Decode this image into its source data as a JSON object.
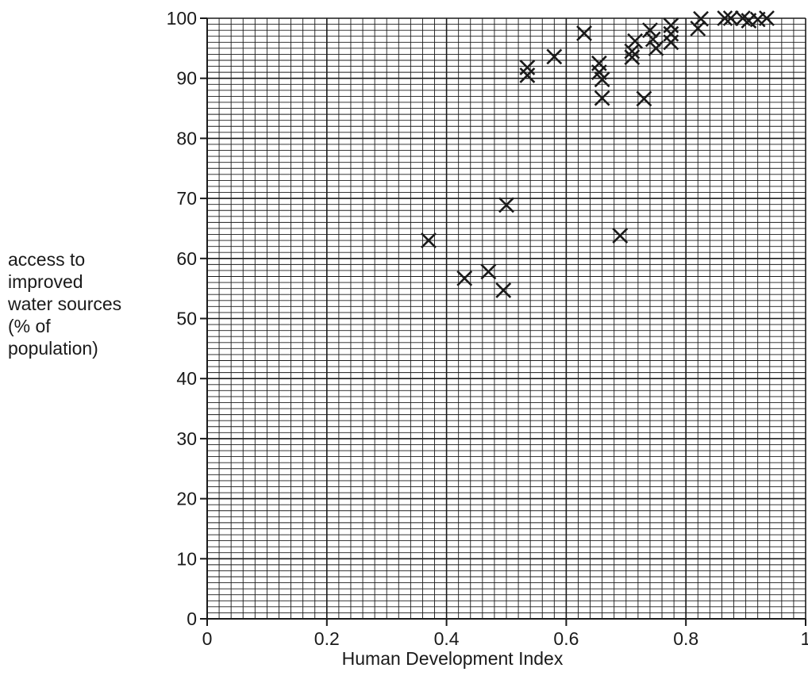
{
  "chart_data": {
    "type": "scatter",
    "xlabel": "Human Development Index",
    "ylabel_lines": [
      "access to",
      "improved",
      "water sources",
      "(% of",
      "population)"
    ],
    "xlim": [
      0,
      1
    ],
    "ylim": [
      0,
      100
    ],
    "x_ticks": [
      "0",
      "0.2",
      "0.4",
      "0.6",
      "0.8",
      "1"
    ],
    "y_ticks": [
      "0",
      "10",
      "20",
      "30",
      "40",
      "50",
      "60",
      "70",
      "80",
      "90",
      "100"
    ],
    "grid": true,
    "minor_grid": true,
    "marker": "x",
    "series": [
      {
        "points": [
          [
            0.37,
            63
          ],
          [
            0.43,
            56.7
          ],
          [
            0.47,
            57.8
          ],
          [
            0.495,
            54.7
          ],
          [
            0.5,
            68.9
          ],
          [
            0.535,
            90.5
          ],
          [
            0.535,
            91.8
          ],
          [
            0.58,
            93.6
          ],
          [
            0.63,
            97.5
          ],
          [
            0.655,
            91
          ],
          [
            0.655,
            92.5
          ],
          [
            0.66,
            86.7
          ],
          [
            0.66,
            89.8
          ],
          [
            0.69,
            63.8
          ],
          [
            0.71,
            93.5
          ],
          [
            0.71,
            94.5
          ],
          [
            0.715,
            96.2
          ],
          [
            0.73,
            86.6
          ],
          [
            0.74,
            98
          ],
          [
            0.745,
            96.5
          ],
          [
            0.75,
            95
          ],
          [
            0.775,
            96
          ],
          [
            0.775,
            97.4
          ],
          [
            0.775,
            98.8
          ],
          [
            0.82,
            98.3
          ],
          [
            0.825,
            99.9
          ],
          [
            0.865,
            100
          ],
          [
            0.875,
            100
          ],
          [
            0.895,
            100
          ],
          [
            0.905,
            99.6
          ],
          [
            0.92,
            99.8
          ],
          [
            0.935,
            100
          ]
        ]
      }
    ]
  }
}
